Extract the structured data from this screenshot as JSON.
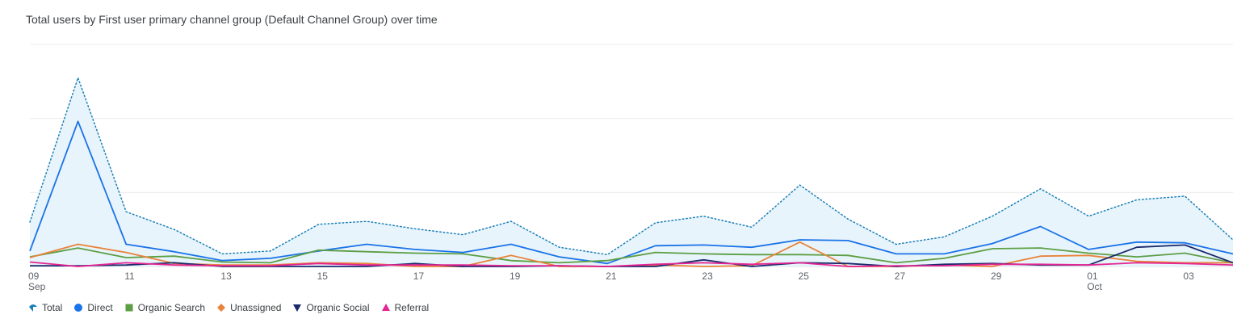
{
  "chart_data": {
    "type": "line",
    "title": "Total users by First user primary channel group (Default Channel Group) over time",
    "x_ticks": [
      {
        "day": "09",
        "month": "Sep"
      },
      {
        "day": "11",
        "month": ""
      },
      {
        "day": "13",
        "month": ""
      },
      {
        "day": "15",
        "month": ""
      },
      {
        "day": "17",
        "month": ""
      },
      {
        "day": "19",
        "month": ""
      },
      {
        "day": "21",
        "month": ""
      },
      {
        "day": "23",
        "month": ""
      },
      {
        "day": "25",
        "month": ""
      },
      {
        "day": "27",
        "month": ""
      },
      {
        "day": "29",
        "month": ""
      },
      {
        "day": "01",
        "month": "Oct"
      },
      {
        "day": "03",
        "month": ""
      }
    ],
    "x": [
      "09 Sep",
      "10 Sep",
      "11 Sep",
      "12 Sep",
      "13 Sep",
      "14 Sep",
      "15 Sep",
      "16 Sep",
      "17 Sep",
      "18 Sep",
      "19 Sep",
      "20 Sep",
      "21 Sep",
      "22 Sep",
      "23 Sep",
      "24 Sep",
      "25 Sep",
      "26 Sep",
      "27 Sep",
      "28 Sep",
      "29 Sep",
      "30 Sep",
      "01 Oct",
      "02 Oct",
      "03 Oct",
      "04 Oct"
    ],
    "ylim": [
      0,
      30
    ],
    "grid": true,
    "legend_position": "bottom-left",
    "series": [
      {
        "name": "Total",
        "color": "#1a7fb8",
        "style": "dotted-area",
        "values": [
          6.0,
          25.5,
          7.4,
          5.0,
          1.7,
          2.1,
          5.7,
          6.1,
          5.1,
          4.3,
          6.1,
          2.6,
          1.6,
          5.9,
          6.8,
          5.3,
          11.0,
          6.4,
          3.0,
          4.0,
          6.8,
          10.5,
          6.8,
          9.0,
          9.5,
          3.6
        ]
      },
      {
        "name": "Direct",
        "color": "#1a73e8",
        "values": [
          2.1,
          19.6,
          3.0,
          2.0,
          0.8,
          1.1,
          2.1,
          3.0,
          2.3,
          1.9,
          3.0,
          1.3,
          0.4,
          2.8,
          2.9,
          2.6,
          3.6,
          3.5,
          1.7,
          1.7,
          3.1,
          5.4,
          2.3,
          3.3,
          3.2,
          1.7
        ]
      },
      {
        "name": "Organic Search",
        "color": "#5c9e44",
        "values": [
          1.3,
          2.5,
          1.2,
          1.4,
          0.6,
          0.5,
          2.2,
          2.0,
          1.8,
          1.7,
          0.8,
          0.5,
          0.8,
          1.9,
          1.7,
          1.6,
          1.6,
          1.5,
          0.5,
          1.1,
          2.4,
          2.5,
          1.8,
          1.3,
          1.8,
          0.5
        ]
      },
      {
        "name": "Unassigned",
        "color": "#e8833a",
        "values": [
          1.2,
          3.0,
          1.9,
          0.4,
          0.2,
          0.2,
          0.5,
          0.4,
          0.0,
          0.0,
          1.5,
          0.0,
          0.0,
          0.2,
          0.0,
          0.1,
          3.3,
          0.0,
          0.0,
          0.2,
          0.0,
          1.4,
          1.5,
          0.7,
          0.5,
          0.5
        ]
      },
      {
        "name": "Organic Social",
        "color": "#1a2a6c",
        "values": [
          0.1,
          0.1,
          0.2,
          0.5,
          0.0,
          0.0,
          0.0,
          0.0,
          0.4,
          0.0,
          0.0,
          0.1,
          0.0,
          0.0,
          0.9,
          0.0,
          0.5,
          0.4,
          0.0,
          0.3,
          0.4,
          0.2,
          0.2,
          2.6,
          2.9,
          0.5
        ]
      },
      {
        "name": "Referral",
        "color": "#e52592",
        "values": [
          0.6,
          0.0,
          0.5,
          0.2,
          0.1,
          0.1,
          0.4,
          0.2,
          0.2,
          0.2,
          0.1,
          0.1,
          0.0,
          0.3,
          0.5,
          0.3,
          0.5,
          0.0,
          0.1,
          0.1,
          0.3,
          0.3,
          0.2,
          0.5,
          0.4,
          0.2
        ]
      }
    ]
  }
}
